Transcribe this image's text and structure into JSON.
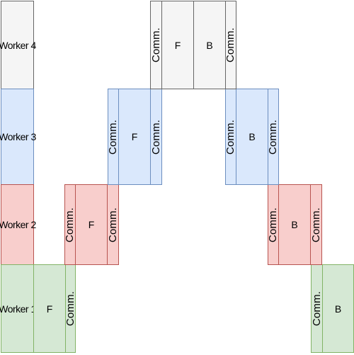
{
  "diagram": {
    "workers": [
      {
        "label": "Worker 4",
        "fill": "#f5f5f5",
        "stroke": "#666666"
      },
      {
        "label": "Worker 3",
        "fill": "#dae8fc",
        "stroke": "#6c8ebf"
      },
      {
        "label": "Worker 2",
        "fill": "#f8cecc",
        "stroke": "#b85450"
      },
      {
        "label": "Worker 1",
        "fill": "#d5e8d4",
        "stroke": "#82b366"
      }
    ],
    "comm_label": "Comm.",
    "forward_label": "F",
    "backward_label": "B"
  }
}
